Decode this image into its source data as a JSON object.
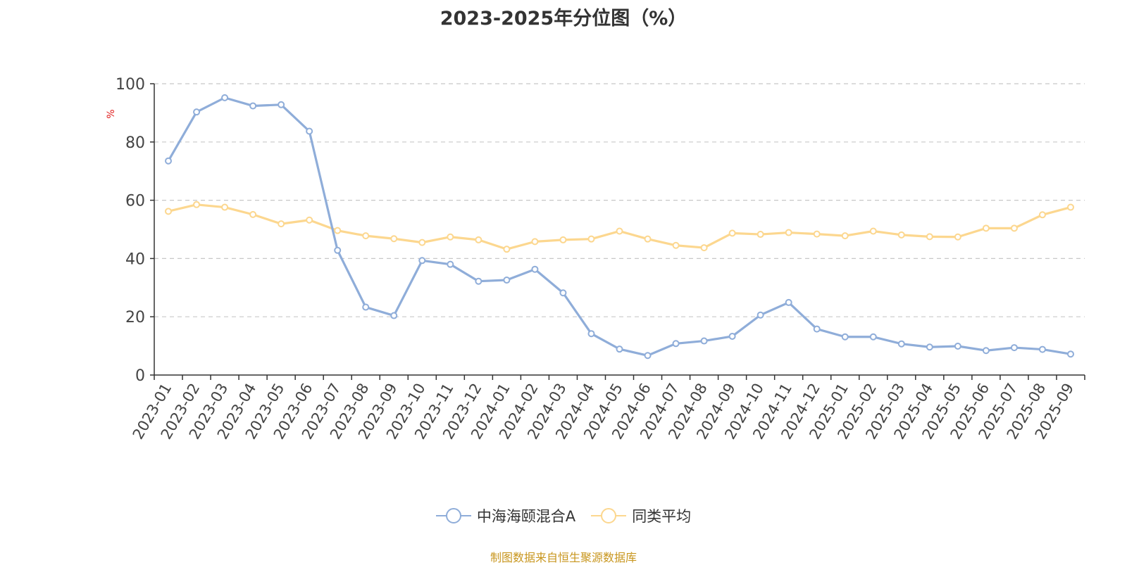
{
  "chart_data": {
    "type": "line",
    "title": "2023-2025年分位图（%）",
    "ylabel": "%",
    "ylim": [
      0,
      100
    ],
    "yticks": [
      "0",
      "20",
      "40",
      "60",
      "80",
      "100"
    ],
    "grid": true,
    "legend_position": "bottom",
    "categories": [
      "2023-01",
      "2023-02",
      "2023-03",
      "2023-04",
      "2023-05",
      "2023-06",
      "2023-07",
      "2023-08",
      "2023-09",
      "2023-10",
      "2023-11",
      "2023-12",
      "2024-01",
      "2024-02",
      "2024-03",
      "2024-04",
      "2024-05",
      "2024-06",
      "2024-07",
      "2024-08",
      "2024-09",
      "2024-10",
      "2024-11",
      "2024-12",
      "2025-01",
      "2025-02",
      "2025-03",
      "2025-04",
      "2025-05",
      "2025-06",
      "2025-07",
      "2025-08",
      "2025-09"
    ],
    "series": [
      {
        "name": "中海海颐混合A",
        "color": "#8fadd9",
        "values": [
          73.5,
          90.3,
          95.2,
          92.4,
          92.8,
          83.7,
          42.8,
          23.3,
          20.4,
          39.3,
          38.0,
          32.2,
          32.6,
          36.3,
          28.2,
          14.2,
          8.9,
          6.7,
          10.8,
          11.7,
          13.3,
          20.6,
          24.9,
          15.8,
          13.1,
          13.1,
          10.7,
          9.6,
          9.9,
          8.4,
          9.4,
          8.8,
          7.2
        ]
      },
      {
        "name": "同类平均",
        "color": "#fcd78f",
        "values": [
          56.2,
          58.5,
          57.6,
          55.1,
          51.9,
          53.2,
          49.6,
          47.8,
          46.8,
          45.5,
          47.4,
          46.4,
          43.2,
          45.8,
          46.4,
          46.7,
          49.4,
          46.7,
          44.5,
          43.7,
          48.7,
          48.3,
          48.9,
          48.4,
          47.8,
          49.4,
          48.1,
          47.5,
          47.4,
          50.4,
          50.4,
          55.0,
          57.6
        ]
      }
    ]
  },
  "footer": {
    "source_text": "制图数据来自恒生聚源数据库"
  }
}
